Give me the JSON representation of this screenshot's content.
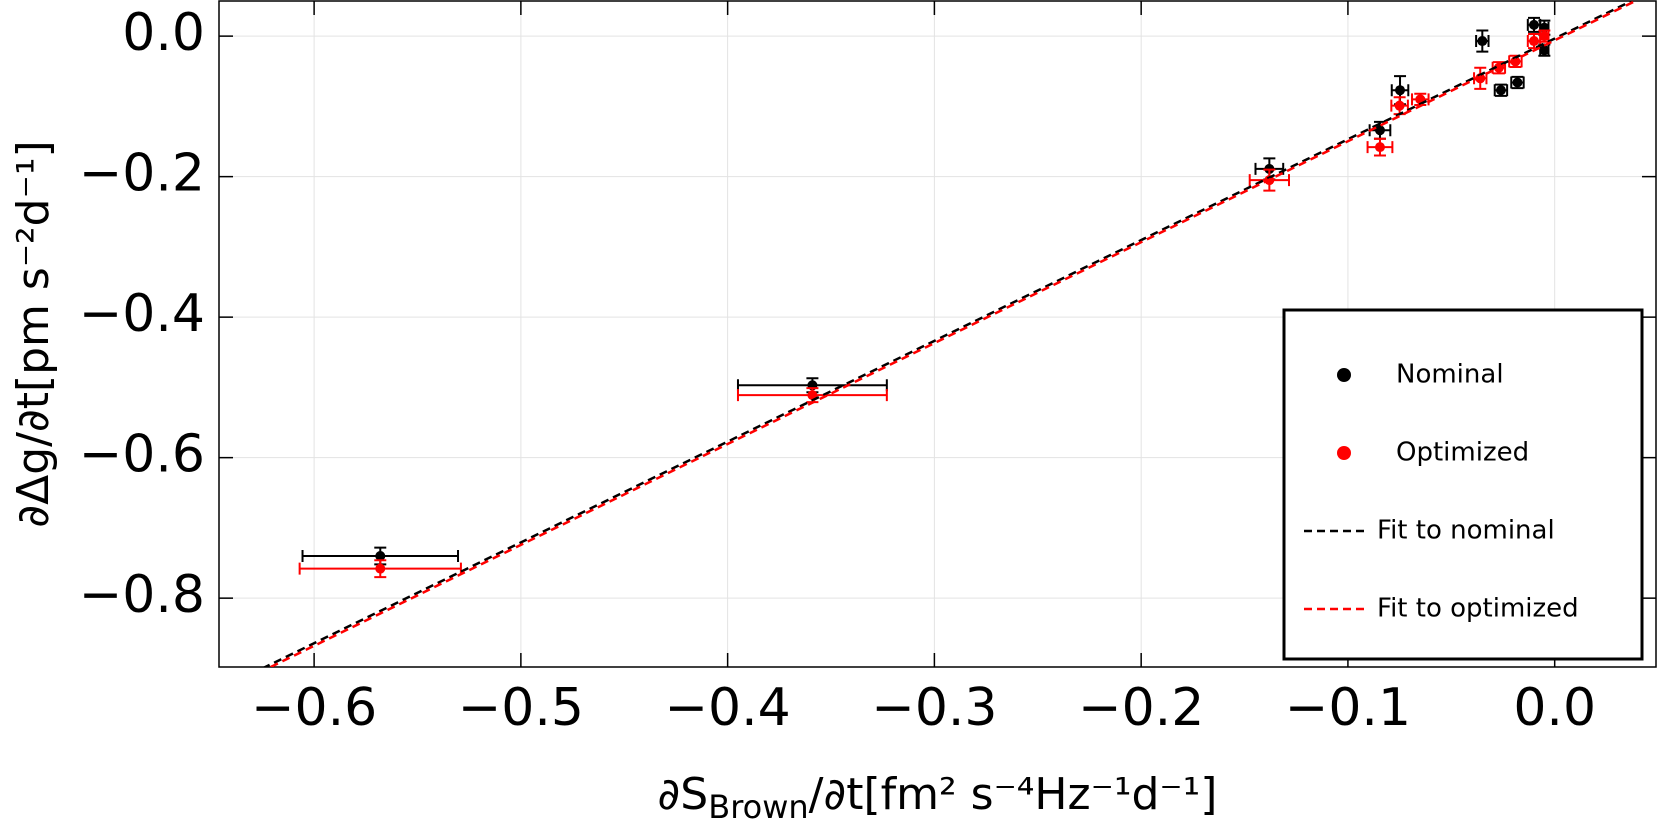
{
  "chart_data": {
    "type": "scatter",
    "xlabel": [
      "∂S",
      "Brown",
      "/∂t[fm² s⁻⁴Hz⁻¹d⁻¹]"
    ],
    "ylabel": "∂Δg/∂t[pm s⁻²d⁻¹]",
    "xlim": [
      -0.646,
      0.049
    ],
    "ylim": [
      -0.898,
      0.05
    ],
    "xticks": [
      {
        "value": -0.6,
        "label": "−0.6"
      },
      {
        "value": -0.5,
        "label": "−0.5"
      },
      {
        "value": -0.4,
        "label": "−0.4"
      },
      {
        "value": -0.3,
        "label": "−0.3"
      },
      {
        "value": -0.2,
        "label": "−0.2"
      },
      {
        "value": -0.1,
        "label": "−0.1"
      },
      {
        "value": 0,
        "label": "0.0"
      }
    ],
    "yticks": [
      {
        "value": 0,
        "label": "0.0"
      },
      {
        "value": -0.2,
        "label": "−0.2"
      },
      {
        "value": -0.4,
        "label": "−0.4"
      },
      {
        "value": -0.6,
        "label": "−0.6"
      },
      {
        "value": -0.8,
        "label": "−0.8"
      }
    ],
    "grid": true,
    "legend": "lower right",
    "series": [
      {
        "name": "Nominal",
        "type": "scatter",
        "color": "#000000",
        "x": [
          -0.568,
          -0.359,
          -0.138,
          -0.0845,
          -0.0748,
          -0.035,
          -0.026,
          -0.018,
          -0.01,
          -0.005,
          -0.005
        ],
        "values": [
          -0.74,
          -0.497,
          -0.189,
          -0.134,
          -0.077,
          -0.007,
          -0.077,
          -0.066,
          0.016,
          -0.02,
          0.012
        ],
        "xerr": [
          0.0376,
          0.036,
          0.0067,
          0.005,
          0.004,
          0.003,
          0.003,
          0.003,
          0.003,
          0.002,
          0.002
        ],
        "yerr": [
          0.012,
          0.01,
          0.015,
          0.012,
          0.02,
          0.015,
          0.008,
          0.008,
          0.01,
          0.008,
          0.01
        ]
      },
      {
        "name": "Optimized",
        "type": "scatter",
        "color": "#ff0000",
        "x": [
          -0.568,
          -0.359,
          -0.138,
          -0.0845,
          -0.075,
          -0.065,
          -0.036,
          -0.027,
          -0.019,
          -0.01,
          -0.005
        ],
        "values": [
          -0.758,
          -0.511,
          -0.205,
          -0.158,
          -0.099,
          -0.09,
          -0.06,
          -0.045,
          -0.036,
          -0.007,
          0.0
        ],
        "xerr": [
          0.039,
          0.036,
          0.0095,
          0.006,
          0.004,
          0.004,
          0.003,
          0.003,
          0.003,
          0.003,
          0.002
        ],
        "yerr": [
          0.012,
          0.01,
          0.015,
          0.012,
          0.012,
          0.008,
          0.015,
          0.008,
          0.008,
          0.01,
          0.008
        ]
      },
      {
        "name": "Fit to nominal",
        "type": "line",
        "color": "#000000",
        "x": [
          -0.625,
          0.04
        ],
        "values": [
          -0.9,
          0.054
        ]
      },
      {
        "name": "Fit to optimized",
        "type": "line",
        "color": "#ff0000",
        "x": [
          -0.621,
          0.039
        ],
        "values": [
          -0.898,
          0.05
        ]
      }
    ]
  }
}
